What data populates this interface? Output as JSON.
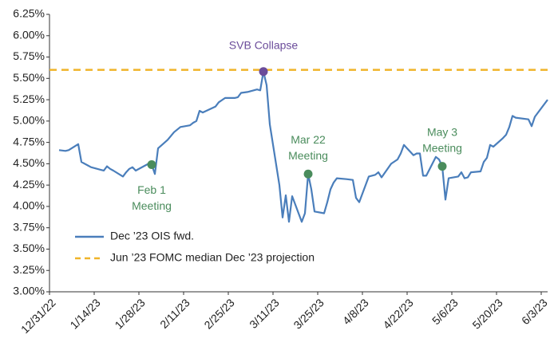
{
  "chart_data": {
    "type": "line",
    "x": [
      "2023-01-03",
      "2023-01-05",
      "2023-01-06",
      "2023-01-09",
      "2023-01-10",
      "2023-01-12",
      "2023-01-13",
      "2023-01-17",
      "2023-01-18",
      "2023-01-19",
      "2023-01-20",
      "2023-01-23",
      "2023-01-24",
      "2023-01-25",
      "2023-01-26",
      "2023-01-27",
      "2023-01-30",
      "2023-01-31",
      "2023-02-01",
      "2023-02-02",
      "2023-02-03",
      "2023-02-06",
      "2023-02-08",
      "2023-02-10",
      "2023-02-13",
      "2023-02-14",
      "2023-02-15",
      "2023-02-16",
      "2023-02-17",
      "2023-02-21",
      "2023-02-22",
      "2023-02-24",
      "2023-02-27",
      "2023-02-28",
      "2023-03-01",
      "2023-03-03",
      "2023-03-06",
      "2023-03-07",
      "2023-03-08",
      "2023-03-09",
      "2023-03-10",
      "2023-03-13",
      "2023-03-14",
      "2023-03-15",
      "2023-03-16",
      "2023-03-17",
      "2023-03-20",
      "2023-03-21",
      "2023-03-22",
      "2023-03-23",
      "2023-03-24",
      "2023-03-27",
      "2023-03-28",
      "2023-03-29",
      "2023-03-30",
      "2023-03-31",
      "2023-04-03",
      "2023-04-05",
      "2023-04-06",
      "2023-04-07",
      "2023-04-10",
      "2023-04-12",
      "2023-04-13",
      "2023-04-14",
      "2023-04-17",
      "2023-04-19",
      "2023-04-20",
      "2023-04-21",
      "2023-04-24",
      "2023-04-25",
      "2023-04-26",
      "2023-04-27",
      "2023-04-28",
      "2023-05-01",
      "2023-05-02",
      "2023-05-03",
      "2023-05-04",
      "2023-05-05",
      "2023-05-08",
      "2023-05-09",
      "2023-05-10",
      "2023-05-11",
      "2023-05-12",
      "2023-05-15",
      "2023-05-16",
      "2023-05-17",
      "2023-05-18",
      "2023-05-19",
      "2023-05-22",
      "2023-05-23",
      "2023-05-24",
      "2023-05-25",
      "2023-05-26",
      "2023-05-30",
      "2023-05-31",
      "2023-06-01",
      "2023-06-02",
      "2023-06-05"
    ],
    "series": [
      {
        "name": "Dec ’23 OIS fwd.",
        "color": "#4a7ebb",
        "values": [
          4.66,
          4.65,
          4.66,
          4.73,
          4.52,
          4.48,
          4.46,
          4.42,
          4.47,
          4.44,
          4.42,
          4.35,
          4.4,
          4.44,
          4.46,
          4.42,
          4.48,
          4.5,
          4.49,
          4.38,
          4.68,
          4.78,
          4.87,
          4.93,
          4.95,
          4.98,
          5.0,
          5.12,
          5.1,
          5.17,
          5.22,
          5.27,
          5.27,
          5.28,
          5.33,
          5.34,
          5.37,
          5.36,
          5.58,
          5.42,
          4.96,
          4.25,
          3.87,
          4.13,
          3.82,
          4.12,
          3.82,
          3.92,
          4.38,
          4.2,
          3.94,
          3.92,
          4.05,
          4.2,
          4.28,
          4.33,
          4.32,
          4.31,
          4.1,
          4.05,
          4.35,
          4.37,
          4.4,
          4.34,
          4.5,
          4.55,
          4.62,
          4.72,
          4.6,
          4.62,
          4.62,
          4.36,
          4.36,
          4.58,
          4.55,
          4.47,
          4.08,
          4.33,
          4.35,
          4.4,
          4.33,
          4.34,
          4.4,
          4.41,
          4.52,
          4.57,
          4.72,
          4.7,
          4.8,
          4.84,
          4.93,
          5.06,
          5.04,
          5.02,
          4.94,
          5.05,
          5.1,
          5.25
        ]
      }
    ],
    "reference_lines": [
      {
        "name": "Jun ’23 FOMC median Dec ’23 projection",
        "value": 5.6,
        "color": "#f0b429"
      }
    ],
    "annotations": [
      {
        "text": [
          "SVB Collapse"
        ],
        "x": "2023-03-08",
        "value": 5.58,
        "color": "#6b4c9a",
        "position": "above"
      },
      {
        "text": [
          "Feb 1",
          "Meeting"
        ],
        "x": "2023-02-01",
        "value": 4.49,
        "color": "#4a8c5c",
        "position": "below"
      },
      {
        "text": [
          "Mar 22",
          "Meeting"
        ],
        "x": "2023-03-22",
        "value": 4.38,
        "color": "#4a8c5c",
        "position": "above"
      },
      {
        "text": [
          "May 3",
          "Meeting"
        ],
        "x": "2023-05-03",
        "value": 4.47,
        "color": "#4a8c5c",
        "position": "above"
      }
    ],
    "xlim": [
      "2022-12-31",
      "2023-06-05"
    ],
    "xticks": [
      {
        "value": "2022-12-31",
        "label": "12/31/22"
      },
      {
        "value": "2023-01-14",
        "label": "1/14/23"
      },
      {
        "value": "2023-01-28",
        "label": "1/28/23"
      },
      {
        "value": "2023-02-11",
        "label": "2/11/23"
      },
      {
        "value": "2023-02-25",
        "label": "2/25/23"
      },
      {
        "value": "2023-03-11",
        "label": "3/11/23"
      },
      {
        "value": "2023-03-25",
        "label": "3/25/23"
      },
      {
        "value": "2023-04-08",
        "label": "4/8/23"
      },
      {
        "value": "2023-04-22",
        "label": "4/22/23"
      },
      {
        "value": "2023-05-06",
        "label": "5/6/23"
      },
      {
        "value": "2023-05-20",
        "label": "5/20/23"
      },
      {
        "value": "2023-06-03",
        "label": "6/3/23"
      }
    ],
    "ylim": [
      3.0,
      6.25
    ],
    "yticks": [
      {
        "value": 3.0,
        "label": "3.00%"
      },
      {
        "value": 3.25,
        "label": "3.25%"
      },
      {
        "value": 3.5,
        "label": "3.50%"
      },
      {
        "value": 3.75,
        "label": "3.75%"
      },
      {
        "value": 4.0,
        "label": "4.00%"
      },
      {
        "value": 4.25,
        "label": "4.25%"
      },
      {
        "value": 4.5,
        "label": "4.50%"
      },
      {
        "value": 4.75,
        "label": "4.75%"
      },
      {
        "value": 5.0,
        "label": "5.00%"
      },
      {
        "value": 5.25,
        "label": "5.25%"
      },
      {
        "value": 5.5,
        "label": "5.50%"
      },
      {
        "value": 5.75,
        "label": "5.75%"
      },
      {
        "value": 6.0,
        "label": "6.00%"
      },
      {
        "value": 6.25,
        "label": "6.25%"
      }
    ],
    "grid": false,
    "legend": "bottom-left"
  }
}
